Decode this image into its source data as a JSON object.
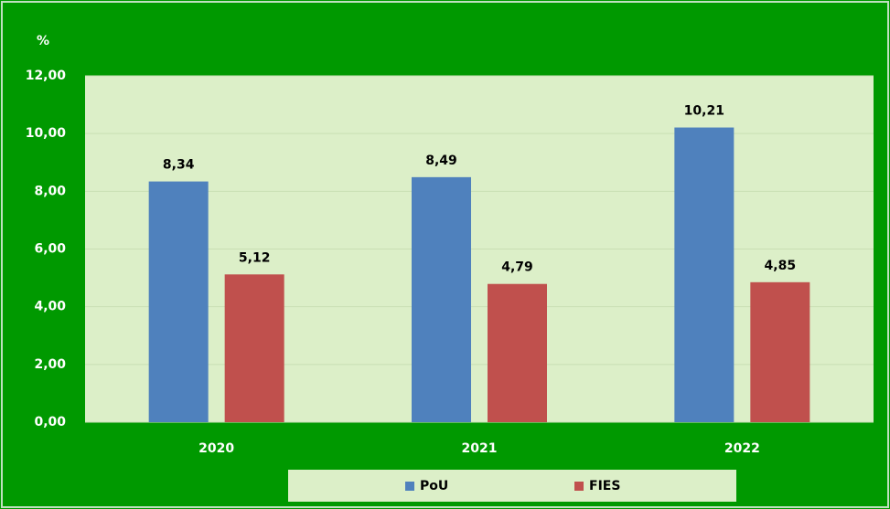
{
  "chart_data": {
    "type": "bar",
    "y_label": "%",
    "categories": [
      "2020",
      "2021",
      "2022"
    ],
    "series": [
      {
        "name": "PoU",
        "color": "#4f81bd",
        "values": [
          8.34,
          8.49,
          10.21
        ],
        "value_labels": [
          "8,34",
          "8,49",
          "10,21"
        ]
      },
      {
        "name": "FIES",
        "color": "#c0504d",
        "values": [
          5.12,
          4.79,
          4.85
        ],
        "value_labels": [
          "5,12",
          "4,79",
          "4,85"
        ]
      }
    ],
    "ylim": [
      0,
      12
    ],
    "yticks": [
      {
        "value": 0,
        "label": "0,00"
      },
      {
        "value": 2,
        "label": "2,00"
      },
      {
        "value": 4,
        "label": "4,00"
      },
      {
        "value": 6,
        "label": "6,00"
      },
      {
        "value": 8,
        "label": "8,00"
      },
      {
        "value": 10,
        "label": "10,00"
      },
      {
        "value": 12,
        "label": "12,00"
      }
    ],
    "grid": true,
    "legend": "bottom"
  }
}
